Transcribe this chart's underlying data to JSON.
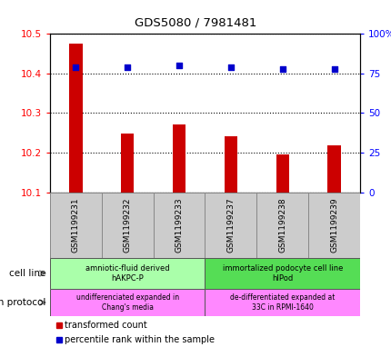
{
  "title": "GDS5080 / 7981481",
  "samples": [
    "GSM1199231",
    "GSM1199232",
    "GSM1199233",
    "GSM1199237",
    "GSM1199238",
    "GSM1199239"
  ],
  "bar_values": [
    10.475,
    10.248,
    10.272,
    10.242,
    10.195,
    10.218
  ],
  "bar_baseline": 10.1,
  "percentile_values": [
    79,
    79,
    80,
    79,
    78,
    78
  ],
  "ylim_left": [
    10.1,
    10.5
  ],
  "ylim_right": [
    0,
    100
  ],
  "yticks_left": [
    10.1,
    10.2,
    10.3,
    10.4,
    10.5
  ],
  "yticks_right": [
    0,
    25,
    50,
    75,
    100
  ],
  "bar_color": "#cc0000",
  "scatter_color": "#0000cc",
  "cell_line_groups": [
    {
      "label": "amniotic-fluid derived\nhAKPC-P",
      "start": 0,
      "end": 3,
      "color": "#aaffaa"
    },
    {
      "label": "immortalized podocyte cell line\nhIPod",
      "start": 3,
      "end": 6,
      "color": "#55dd55"
    }
  ],
  "growth_protocol_groups": [
    {
      "label": "undifferenciated expanded in\nChang's media",
      "start": 0,
      "end": 3,
      "color": "#ff88ff"
    },
    {
      "label": "de-differentiated expanded at\n33C in RPMI-1640",
      "start": 3,
      "end": 6,
      "color": "#ff88ff"
    }
  ],
  "sample_box_color": "#cccccc",
  "cell_line_label": "cell line",
  "growth_protocol_label": "growth protocol",
  "legend_bar_label": "transformed count",
  "legend_scatter_label": "percentile rank within the sample",
  "background_color": "#ffffff",
  "fig_width": 4.31,
  "fig_height": 3.93,
  "dpi": 100
}
